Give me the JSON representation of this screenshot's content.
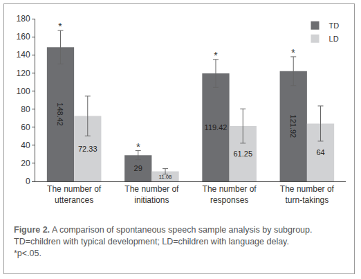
{
  "chart_data": {
    "type": "bar",
    "categories": [
      "The number of utterances",
      "The number of initiations",
      "The number of responses",
      "The number of turn-takings"
    ],
    "series": [
      {
        "name": "TD",
        "color": "#6d6e71",
        "values": [
          148.42,
          29,
          119.42,
          121.92
        ],
        "errors": [
          18.5,
          5,
          15.5,
          16
        ]
      },
      {
        "name": "LD",
        "color": "#d1d2d4",
        "values": [
          72.33,
          11.08,
          61.25,
          64
        ],
        "errors": [
          22,
          3,
          19,
          19.5
        ]
      }
    ],
    "ylim": [
      0,
      180
    ],
    "yticks": [
      0,
      20,
      40,
      60,
      80,
      100,
      120,
      140,
      160,
      180
    ],
    "grid": false,
    "legend": "top-right",
    "data_labels": true,
    "annotations": [
      {
        "text": "*",
        "series": "TD",
        "category": "The number of utterances"
      },
      {
        "text": "*",
        "series": "TD",
        "category": "The number of initiations"
      },
      {
        "text": "*",
        "series": "TD",
        "category": "The number of responses"
      },
      {
        "text": "*",
        "series": "TD",
        "category": "The number of turn-takings"
      }
    ],
    "caption": {
      "label": "Figure 2.",
      "lines": [
        "A comparison of spontaneous speech sample analysis by subgroup.",
        "TD=children with typical development; LD=children with language delay.",
        "*p<.05."
      ]
    }
  }
}
